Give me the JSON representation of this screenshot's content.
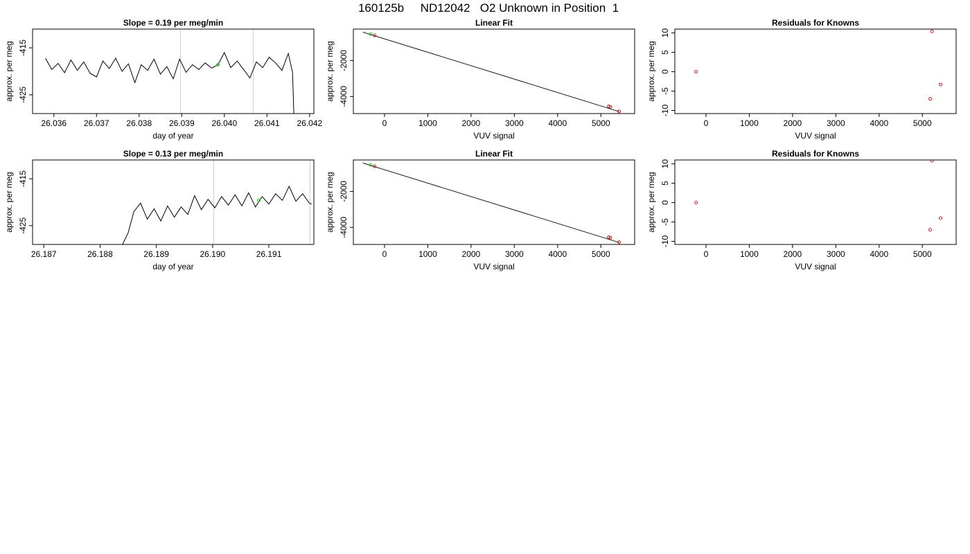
{
  "main_title": "160125b     ND12042   O2 Unknown in Position  1",
  "colors": {
    "line": "#000000",
    "grid_vline": "#d3d3d3",
    "known_point": "#cc0000",
    "unknown_point": "#00cc00",
    "frame": "#000000"
  },
  "chart_data": [
    {
      "type": "line",
      "title": "Slope =  0.19  per meg/min",
      "xlabel": "day of year",
      "ylabel": "approx. per meg",
      "xlim": [
        26.0355,
        26.0421
      ],
      "ylim": [
        -429,
        -411
      ],
      "x_ticks": [
        26.036,
        26.037,
        26.038,
        26.039,
        26.04,
        26.041,
        26.042
      ],
      "x_tick_labels": [
        "26.036",
        "26.037",
        "26.038",
        "26.039",
        "26.040",
        "26.041",
        "26.042"
      ],
      "y_ticks": [
        -415,
        -425
      ],
      "y_tick_labels": [
        "-415",
        "-425"
      ],
      "vlines": [
        26.03897,
        26.04068
      ],
      "series": [
        {
          "values": [
            [
              26.0358,
              -417.2
            ],
            [
              26.03595,
              -419.6
            ],
            [
              26.0361,
              -418.3
            ],
            [
              26.03625,
              -420.3
            ],
            [
              26.0364,
              -417.6
            ],
            [
              26.03655,
              -419.8
            ],
            [
              26.0367,
              -418.0
            ],
            [
              26.03685,
              -420.4
            ],
            [
              26.037,
              -421.2
            ],
            [
              26.03715,
              -417.8
            ],
            [
              26.0373,
              -419.4
            ],
            [
              26.03745,
              -417.2
            ],
            [
              26.0376,
              -420.0
            ],
            [
              26.03775,
              -418.4
            ],
            [
              26.0379,
              -422.4
            ],
            [
              26.03805,
              -418.6
            ],
            [
              26.0382,
              -419.8
            ],
            [
              26.03835,
              -417.4
            ],
            [
              26.0385,
              -420.6
            ],
            [
              26.03865,
              -419.0
            ],
            [
              26.0388,
              -421.6
            ],
            [
              26.03895,
              -417.4
            ],
            [
              26.0391,
              -420.2
            ],
            [
              26.03925,
              -418.6
            ],
            [
              26.0394,
              -419.6
            ],
            [
              26.03955,
              -418.2
            ],
            [
              26.0397,
              -419.3
            ],
            [
              26.03985,
              -418.6
            ],
            [
              26.04,
              -416.0
            ],
            [
              26.04015,
              -419.2
            ],
            [
              26.0403,
              -417.8
            ],
            [
              26.04045,
              -419.6
            ],
            [
              26.0406,
              -421.4
            ],
            [
              26.04075,
              -418.0
            ],
            [
              26.0409,
              -419.2
            ],
            [
              26.04105,
              -417.0
            ],
            [
              26.0412,
              -418.2
            ],
            [
              26.04135,
              -419.8
            ],
            [
              26.0415,
              -416.2
            ],
            [
              26.0416,
              -420.2
            ],
            [
              26.04163,
              -429
            ]
          ]
        }
      ],
      "marker_points": [
        {
          "x": 26.03985,
          "y": -418.6,
          "kind": "unknown"
        }
      ]
    },
    {
      "type": "scatter",
      "title": "Linear Fit",
      "xlabel": "VUV signal",
      "ylabel": "approx. per meg",
      "xlim": [
        -720,
        5780
      ],
      "ylim": [
        -4950,
        -250
      ],
      "x_ticks": [
        0,
        1000,
        2000,
        3000,
        4000,
        5000
      ],
      "x_tick_labels": [
        "0",
        "1000",
        "2000",
        "3000",
        "4000",
        "5000"
      ],
      "y_ticks": [
        -2000,
        -4000
      ],
      "y_tick_labels": [
        "-2000",
        "-4000"
      ],
      "fit_line": [
        [
          -500,
          -420
        ],
        [
          5420,
          -4840
        ]
      ],
      "known_points": [
        [
          -230,
          -600
        ],
        [
          5180,
          -4550
        ],
        [
          5220,
          -4575
        ],
        [
          5420,
          -4830
        ]
      ],
      "unknown_points": [
        [
          -320,
          -530
        ]
      ]
    },
    {
      "type": "scatter",
      "title": "Residuals for Knowns",
      "xlabel": "VUV signal",
      "ylabel": "approx. per meg",
      "xlim": [
        -720,
        5780
      ],
      "ylim": [
        -10.8,
        11
      ],
      "x_ticks": [
        0,
        1000,
        2000,
        3000,
        4000,
        5000
      ],
      "x_tick_labels": [
        "0",
        "1000",
        "2000",
        "3000",
        "4000",
        "5000"
      ],
      "y_ticks": [
        10,
        5,
        0,
        -5,
        -10
      ],
      "y_tick_labels": [
        "10",
        "5",
        "0",
        "-5",
        "-10"
      ],
      "known_points": [
        [
          -230,
          0
        ],
        [
          5220,
          10.4
        ],
        [
          5420,
          -3.3
        ],
        [
          5180,
          -7.0
        ]
      ]
    },
    {
      "type": "line",
      "title": "Slope =  0.13  per meg/min",
      "xlabel": "day of year",
      "ylabel": "approx. per meg",
      "xlim": [
        26.1868,
        26.1918
      ],
      "ylim": [
        -429,
        -411
      ],
      "x_ticks": [
        26.187,
        26.188,
        26.189,
        26.19,
        26.191
      ],
      "x_tick_labels": [
        "26.187",
        "26.188",
        "26.189",
        "26.190",
        "26.191"
      ],
      "y_ticks": [
        -415,
        -425
      ],
      "y_tick_labels": [
        "-415",
        "-425"
      ],
      "vlines": [
        26.19002,
        26.19173
      ],
      "series": [
        {
          "values": [
            [
              26.1884,
              -429
            ],
            [
              26.1885,
              -426.5
            ],
            [
              26.1886,
              -422.0
            ],
            [
              26.18872,
              -420.2
            ],
            [
              26.18884,
              -423.6
            ],
            [
              26.18896,
              -421.4
            ],
            [
              26.18908,
              -424.0
            ],
            [
              26.1892,
              -420.8
            ],
            [
              26.18932,
              -423.2
            ],
            [
              26.18944,
              -421.0
            ],
            [
              26.18956,
              -422.6
            ],
            [
              26.18968,
              -418.6
            ],
            [
              26.1898,
              -421.6
            ],
            [
              26.18992,
              -419.4
            ],
            [
              26.19004,
              -421.2
            ],
            [
              26.19016,
              -418.8
            ],
            [
              26.19028,
              -420.6
            ],
            [
              26.1904,
              -418.4
            ],
            [
              26.19052,
              -420.8
            ],
            [
              26.19064,
              -418.0
            ],
            [
              26.19076,
              -421.0
            ],
            [
              26.19088,
              -418.8
            ],
            [
              26.191,
              -420.4
            ],
            [
              26.19112,
              -418.2
            ],
            [
              26.19124,
              -419.6
            ],
            [
              26.19136,
              -416.6
            ],
            [
              26.19148,
              -419.8
            ],
            [
              26.1916,
              -418.2
            ],
            [
              26.19172,
              -420.2
            ],
            [
              26.19176,
              -420.4
            ]
          ]
        }
      ],
      "marker_points": [
        {
          "x": 26.19082,
          "y": -419.6,
          "kind": "unknown"
        }
      ]
    },
    {
      "type": "scatter",
      "title": "Linear Fit",
      "xlabel": "VUV signal",
      "ylabel": "approx. per meg",
      "xlim": [
        -720,
        5780
      ],
      "ylim": [
        -4950,
        -250
      ],
      "x_ticks": [
        0,
        1000,
        2000,
        3000,
        4000,
        5000
      ],
      "x_tick_labels": [
        "0",
        "1000",
        "2000",
        "3000",
        "4000",
        "5000"
      ],
      "y_ticks": [
        -2000,
        -4000
      ],
      "y_tick_labels": [
        "-2000",
        "-4000"
      ],
      "fit_line": [
        [
          -500,
          -420
        ],
        [
          5420,
          -4840
        ]
      ],
      "known_points": [
        [
          -230,
          -600
        ],
        [
          5180,
          -4550
        ],
        [
          5220,
          -4575
        ],
        [
          5420,
          -4830
        ]
      ],
      "unknown_points": [
        [
          -320,
          -530
        ]
      ]
    },
    {
      "type": "scatter",
      "title": "Residuals for Knowns",
      "xlabel": "VUV signal",
      "ylabel": "approx. per meg",
      "xlim": [
        -720,
        5780
      ],
      "ylim": [
        -10.8,
        11
      ],
      "x_ticks": [
        0,
        1000,
        2000,
        3000,
        4000,
        5000
      ],
      "x_tick_labels": [
        "0",
        "1000",
        "2000",
        "3000",
        "4000",
        "5000"
      ],
      "y_ticks": [
        10,
        5,
        0,
        -5,
        -10
      ],
      "y_tick_labels": [
        "10",
        "5",
        "0",
        "-5",
        "-10"
      ],
      "known_points": [
        [
          -230,
          0
        ],
        [
          5220,
          10.8
        ],
        [
          5420,
          -4.0
        ],
        [
          5180,
          -7.0
        ]
      ]
    }
  ]
}
